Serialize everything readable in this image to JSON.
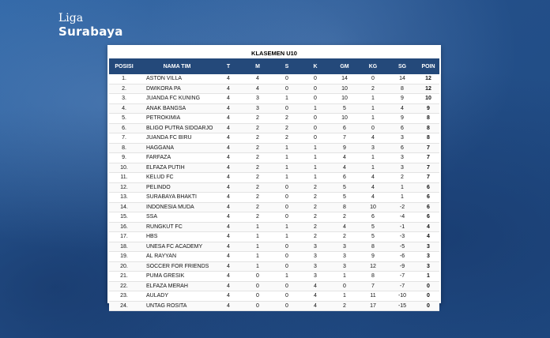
{
  "logo": {
    "line1": "Liga",
    "line2": "Surabaya"
  },
  "table": {
    "title": "KLASEMEN U10",
    "headers": [
      "POSISI",
      "NAMA TIM",
      "T",
      "M",
      "S",
      "K",
      "GM",
      "KG",
      "SG",
      "POIN"
    ],
    "rows": [
      [
        "1.",
        "ASTON VILLA",
        "4",
        "4",
        "0",
        "0",
        "14",
        "0",
        "14",
        "12"
      ],
      [
        "2.",
        "DWIKORA PA",
        "4",
        "4",
        "0",
        "0",
        "10",
        "2",
        "8",
        "12"
      ],
      [
        "3.",
        "JUANDA FC KUNING",
        "4",
        "3",
        "1",
        "0",
        "10",
        "1",
        "9",
        "10"
      ],
      [
        "4.",
        "ANAK BANGSA",
        "4",
        "3",
        "0",
        "1",
        "5",
        "1",
        "4",
        "9"
      ],
      [
        "5.",
        "PETROKIMIA",
        "4",
        "2",
        "2",
        "0",
        "10",
        "1",
        "9",
        "8"
      ],
      [
        "6.",
        "BLIGO PUTRA SIDOARJO",
        "4",
        "2",
        "2",
        "0",
        "6",
        "0",
        "6",
        "8"
      ],
      [
        "7.",
        "JUANDA FC BIRU",
        "4",
        "2",
        "2",
        "0",
        "7",
        "4",
        "3",
        "8"
      ],
      [
        "8.",
        "HAGGANA",
        "4",
        "2",
        "1",
        "1",
        "9",
        "3",
        "6",
        "7"
      ],
      [
        "9.",
        "FARFAZA",
        "4",
        "2",
        "1",
        "1",
        "4",
        "1",
        "3",
        "7"
      ],
      [
        "10.",
        "ELFAZA PUTIH",
        "4",
        "2",
        "1",
        "1",
        "4",
        "1",
        "3",
        "7"
      ],
      [
        "11.",
        "KELUD FC",
        "4",
        "2",
        "1",
        "1",
        "6",
        "4",
        "2",
        "7"
      ],
      [
        "12.",
        "PELINDO",
        "4",
        "2",
        "0",
        "2",
        "5",
        "4",
        "1",
        "6"
      ],
      [
        "13.",
        "SURABAYA BHAKTI",
        "4",
        "2",
        "0",
        "2",
        "5",
        "4",
        "1",
        "6"
      ],
      [
        "14.",
        "INDONESIA MUDA",
        "4",
        "2",
        "0",
        "2",
        "8",
        "10",
        "-2",
        "6"
      ],
      [
        "15.",
        "SSA",
        "4",
        "2",
        "0",
        "2",
        "2",
        "6",
        "-4",
        "6"
      ],
      [
        "16.",
        "RUNGKUT FC",
        "4",
        "1",
        "1",
        "2",
        "4",
        "5",
        "-1",
        "4"
      ],
      [
        "17.",
        "HBS",
        "4",
        "1",
        "1",
        "2",
        "2",
        "5",
        "-3",
        "4"
      ],
      [
        "18.",
        "UNESA FC ACADEMY",
        "4",
        "1",
        "0",
        "3",
        "3",
        "8",
        "-5",
        "3"
      ],
      [
        "19.",
        "AL RAYYAN",
        "4",
        "1",
        "0",
        "3",
        "3",
        "9",
        "-6",
        "3"
      ],
      [
        "20.",
        "SOCCER FOR FRIENDS",
        "4",
        "1",
        "0",
        "3",
        "3",
        "12",
        "-9",
        "3"
      ],
      [
        "21.",
        "PUMA GRESIK",
        "4",
        "0",
        "1",
        "3",
        "1",
        "8",
        "-7",
        "1"
      ],
      [
        "22.",
        "ELFAZA MERAH",
        "4",
        "0",
        "0",
        "4",
        "0",
        "7",
        "-7",
        "0"
      ],
      [
        "23.",
        "AULADY",
        "4",
        "0",
        "0",
        "4",
        "1",
        "11",
        "-10",
        "0"
      ],
      [
        "24.",
        "UNTAG ROSITA",
        "4",
        "0",
        "0",
        "4",
        "2",
        "17",
        "-15",
        "0"
      ]
    ]
  }
}
